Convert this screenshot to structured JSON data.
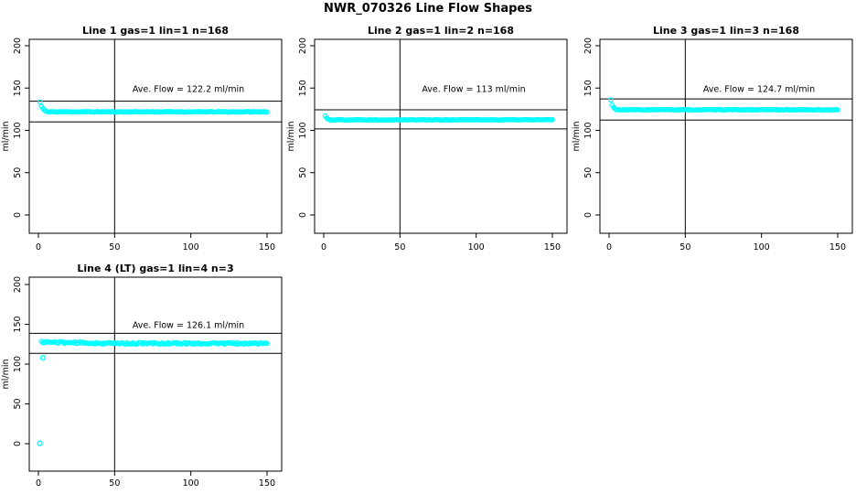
{
  "figure": {
    "title": "NWR_070326  Line Flow Shapes"
  },
  "colors": {
    "marker": "#00ffff",
    "axis": "#000000",
    "background": "#ffffff"
  },
  "chart_data": [
    {
      "type": "scatter",
      "title": "Line 1 gas=1 lin=1 n=168",
      "annotation": "Ave. Flow =  122.2  ml/min",
      "avg_flow_ml_min": 122.2,
      "n": 168,
      "ylabel": "ml/min",
      "xticks": [
        0,
        50,
        100,
        150
      ],
      "yticks": [
        0,
        50,
        100,
        150,
        200
      ],
      "xlim": [
        0,
        155
      ],
      "ylim": [
        0,
        210
      ],
      "vline_x": 50,
      "hlines": [
        134.4,
        110.0
      ],
      "transient": [
        [
          1,
          133.5
        ],
        [
          2,
          128.5
        ],
        [
          3,
          125.8
        ],
        [
          4,
          123.8
        ],
        [
          5,
          122.7
        ]
      ],
      "flat": {
        "from": 6,
        "to": 150,
        "value": 121.9,
        "jitter": 0.45
      },
      "outliers": [],
      "seed": 11
    },
    {
      "type": "scatter",
      "title": "Line 2 gas=1 lin=2 n=168",
      "annotation": "Ave. Flow =  113  ml/min",
      "avg_flow_ml_min": 113,
      "n": 168,
      "ylabel": "ml/min",
      "xticks": [
        0,
        50,
        100,
        150
      ],
      "yticks": [
        0,
        50,
        100,
        150,
        200
      ],
      "xlim": [
        0,
        155
      ],
      "ylim": [
        0,
        210
      ],
      "vline_x": 50,
      "hlines": [
        124.3,
        101.7
      ],
      "transient": [
        [
          1,
          117.2
        ],
        [
          2,
          114.5
        ],
        [
          3,
          113.2
        ]
      ],
      "flat": {
        "from": 4,
        "to": 150,
        "value": 112.5,
        "jitter": 0.4
      },
      "outliers": [],
      "seed": 22
    },
    {
      "type": "scatter",
      "title": "Line 3 gas=1 lin=3 n=168",
      "annotation": "Ave. Flow =  124.7  ml/min",
      "avg_flow_ml_min": 124.7,
      "n": 168,
      "ylabel": "ml/min",
      "xticks": [
        0,
        50,
        100,
        150
      ],
      "yticks": [
        0,
        50,
        100,
        150,
        200
      ],
      "xlim": [
        0,
        155
      ],
      "ylim": [
        0,
        210
      ],
      "vline_x": 50,
      "hlines": [
        137.2,
        112.2
      ],
      "transient": [
        [
          1,
          136
        ],
        [
          2,
          130
        ],
        [
          3,
          127.2
        ],
        [
          4,
          125.5
        ]
      ],
      "flat": {
        "from": 5,
        "to": 150,
        "value": 124.3,
        "jitter": 0.4
      },
      "outliers": [],
      "seed": 33
    },
    {
      "type": "scatter",
      "title": "Line 4 (LT) gas=1 lin=4 n=3",
      "annotation": "Ave. Flow =  126.1  ml/min",
      "avg_flow_ml_min": 126.1,
      "n": 3,
      "ylabel": "ml/min",
      "xticks": [
        0,
        50,
        100,
        150
      ],
      "yticks": [
        0,
        50,
        100,
        150,
        200
      ],
      "xlim": [
        0,
        155
      ],
      "ylim": [
        0,
        210
      ],
      "vline_x": 50,
      "hlines": [
        138.7,
        113.5
      ],
      "transient": [],
      "flat": {
        "from": 2,
        "to": 150,
        "value": 126.0,
        "jitter": 1.1,
        "drift": {
          "start": 127.8,
          "until": 45
        }
      },
      "outliers": [
        [
          1,
          0.5
        ],
        [
          3,
          108
        ]
      ],
      "seed": 44
    }
  ]
}
